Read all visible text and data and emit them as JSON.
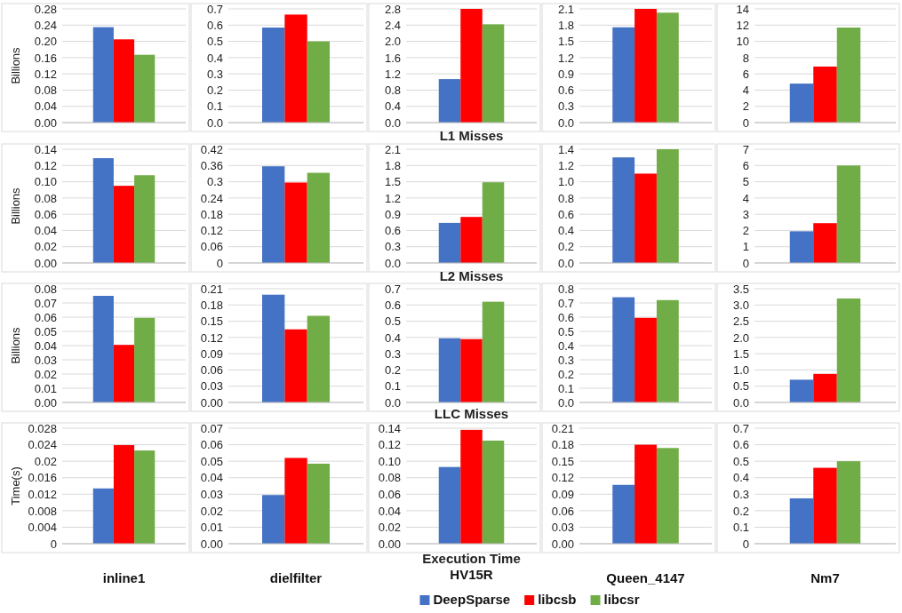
{
  "chart_data": [
    {
      "type": "bar",
      "ylabel": "Billions",
      "categories": [
        null
      ],
      "tick_labels": "y",
      "grid": "y",
      "ylim": [
        0,
        0.28
      ],
      "yticks": [
        {
          "value": 0,
          "label": "0.00"
        },
        0.04,
        0.08,
        0.12,
        0.16,
        {
          "value": 0.2,
          "label": "0.20"
        },
        0.24,
        0.28
      ],
      "series": [
        {
          "color": "#4472c4",
          "values": [
            0.235
          ]
        },
        {
          "color": "#ff0000",
          "values": [
            0.205
          ]
        },
        {
          "color": "#70ad47",
          "values": [
            0.167
          ]
        }
      ]
    },
    {
      "type": "bar",
      "categories": [
        null
      ],
      "tick_labels": "y",
      "grid": "y",
      "ylim": [
        0,
        0.7
      ],
      "yticks": [
        {
          "value": 0,
          "label": "0.0"
        },
        0.1,
        0.2,
        0.3,
        0.4,
        0.5,
        0.6,
        0.7
      ],
      "series": [
        {
          "color": "#4472c4",
          "values": [
            0.585
          ]
        },
        {
          "color": "#ff0000",
          "values": [
            0.665
          ]
        },
        {
          "color": "#70ad47",
          "values": [
            0.5
          ]
        }
      ]
    },
    {
      "type": "bar",
      "title": "L1 Misses",
      "categories": [
        null
      ],
      "tick_labels": "y",
      "grid": "y",
      "ylim": [
        0,
        2.8
      ],
      "yticks": [
        {
          "value": 0,
          "label": "0.0"
        },
        0.4,
        0.8,
        1.2,
        1.6,
        {
          "value": 2,
          "label": "2.0"
        },
        2.4,
        2.8
      ],
      "series": [
        {
          "color": "#4472c4",
          "values": [
            1.07
          ]
        },
        {
          "color": "#ff0000",
          "values": [
            2.8
          ]
        },
        {
          "color": "#70ad47",
          "values": [
            2.42
          ]
        }
      ]
    },
    {
      "type": "bar",
      "categories": [
        null
      ],
      "tick_labels": "y",
      "grid": "y",
      "ylim": [
        0,
        2.1
      ],
      "yticks": [
        {
          "value": 0,
          "label": "0.0"
        },
        0.3,
        0.6,
        0.9,
        1.2,
        1.5,
        1.8,
        2.1
      ],
      "series": [
        {
          "color": "#4472c4",
          "values": [
            1.76
          ]
        },
        {
          "color": "#ff0000",
          "values": [
            2.1
          ]
        },
        {
          "color": "#70ad47",
          "values": [
            2.03
          ]
        }
      ]
    },
    {
      "type": "bar",
      "categories": [
        null
      ],
      "tick_labels": "y",
      "grid": "y",
      "ylim": [
        0,
        14
      ],
      "yticks": [
        0,
        2,
        4,
        6,
        8,
        10,
        12,
        14
      ],
      "series": [
        {
          "color": "#4472c4",
          "values": [
            4.8
          ]
        },
        {
          "color": "#ff0000",
          "values": [
            6.9
          ]
        },
        {
          "color": "#70ad47",
          "values": [
            11.7
          ]
        }
      ]
    },
    {
      "type": "bar",
      "ylabel": "Billions",
      "categories": [
        null
      ],
      "tick_labels": "y",
      "grid": "y",
      "ylim": [
        0,
        0.14
      ],
      "yticks": [
        {
          "value": 0,
          "label": "0.00"
        },
        0.02,
        0.04,
        0.06,
        0.08,
        {
          "value": 0.1,
          "label": "0.10"
        },
        0.12,
        0.14
      ],
      "series": [
        {
          "color": "#4472c4",
          "values": [
            0.129
          ]
        },
        {
          "color": "#ff0000",
          "values": [
            0.095
          ]
        },
        {
          "color": "#70ad47",
          "values": [
            0.108
          ]
        }
      ]
    },
    {
      "type": "bar",
      "categories": [
        null
      ],
      "tick_labels": "y",
      "grid": "y",
      "ylim": [
        0,
        0.42
      ],
      "yticks": [
        0,
        0.06,
        0.12,
        0.18,
        0.24,
        0.3,
        0.36,
        0.42
      ],
      "series": [
        {
          "color": "#4472c4",
          "values": [
            0.357
          ]
        },
        {
          "color": "#ff0000",
          "values": [
            0.297
          ]
        },
        {
          "color": "#70ad47",
          "values": [
            0.333
          ]
        }
      ]
    },
    {
      "type": "bar",
      "title": "L2 Misses",
      "categories": [
        null
      ],
      "tick_labels": "y",
      "grid": "y",
      "ylim": [
        0,
        2.1
      ],
      "yticks": [
        {
          "value": 0,
          "label": "0.0"
        },
        0.3,
        0.6,
        0.9,
        1.2,
        1.5,
        1.8,
        2.1
      ],
      "series": [
        {
          "color": "#4472c4",
          "values": [
            0.74
          ]
        },
        {
          "color": "#ff0000",
          "values": [
            0.85
          ]
        },
        {
          "color": "#70ad47",
          "values": [
            1.49
          ]
        }
      ]
    },
    {
      "type": "bar",
      "categories": [
        null
      ],
      "tick_labels": "y",
      "grid": "y",
      "ylim": [
        0,
        1.4
      ],
      "yticks": [
        {
          "value": 0,
          "label": "0.0"
        },
        0.2,
        0.4,
        0.6,
        0.8,
        {
          "value": 1,
          "label": "1.0"
        },
        1.2,
        1.4
      ],
      "series": [
        {
          "color": "#4472c4",
          "values": [
            1.3
          ]
        },
        {
          "color": "#ff0000",
          "values": [
            1.1
          ]
        },
        {
          "color": "#70ad47",
          "values": [
            1.4
          ]
        }
      ]
    },
    {
      "type": "bar",
      "categories": [
        null
      ],
      "tick_labels": "y",
      "grid": "y",
      "ylim": [
        0,
        7
      ],
      "yticks": [
        0,
        1,
        2,
        3,
        4,
        5,
        6,
        7
      ],
      "series": [
        {
          "color": "#4472c4",
          "values": [
            1.95
          ]
        },
        {
          "color": "#ff0000",
          "values": [
            2.45
          ]
        },
        {
          "color": "#70ad47",
          "values": [
            6.0
          ]
        }
      ]
    },
    {
      "type": "bar",
      "ylabel": "Billions",
      "categories": [
        null
      ],
      "tick_labels": "y",
      "grid": "y",
      "ylim": [
        0,
        0.08
      ],
      "yticks": [
        {
          "value": 0,
          "label": "0.00"
        },
        0.01,
        0.02,
        0.03,
        0.04,
        0.05,
        0.06,
        0.07,
        0.08
      ],
      "series": [
        {
          "color": "#4472c4",
          "values": [
            0.075
          ]
        },
        {
          "color": "#ff0000",
          "values": [
            0.0405
          ]
        },
        {
          "color": "#70ad47",
          "values": [
            0.0595
          ]
        }
      ]
    },
    {
      "type": "bar",
      "categories": [
        null
      ],
      "tick_labels": "y",
      "grid": "y",
      "ylim": [
        0,
        0.21
      ],
      "yticks": [
        {
          "value": 0,
          "label": "0.00"
        },
        0.03,
        0.06,
        0.09,
        0.12,
        0.15,
        0.18,
        0.21
      ],
      "series": [
        {
          "color": "#4472c4",
          "values": [
            0.199
          ]
        },
        {
          "color": "#ff0000",
          "values": [
            0.135
          ]
        },
        {
          "color": "#70ad47",
          "values": [
            0.16
          ]
        }
      ]
    },
    {
      "type": "bar",
      "title": "LLC Misses",
      "categories": [
        null
      ],
      "tick_labels": "y",
      "grid": "y",
      "ylim": [
        0,
        0.7
      ],
      "yticks": [
        {
          "value": 0,
          "label": "0.0"
        },
        0.1,
        0.2,
        0.3,
        0.4,
        0.5,
        0.6,
        0.7
      ],
      "series": [
        {
          "color": "#4472c4",
          "values": [
            0.395
          ]
        },
        {
          "color": "#ff0000",
          "values": [
            0.39
          ]
        },
        {
          "color": "#70ad47",
          "values": [
            0.62
          ]
        }
      ]
    },
    {
      "type": "bar",
      "categories": [
        null
      ],
      "tick_labels": "y",
      "grid": "y",
      "ylim": [
        0,
        0.8
      ],
      "yticks": [
        {
          "value": 0,
          "label": "0.0"
        },
        0.1,
        0.2,
        0.3,
        0.4,
        0.5,
        0.6,
        0.7,
        0.8
      ],
      "series": [
        {
          "color": "#4472c4",
          "values": [
            0.74
          ]
        },
        {
          "color": "#ff0000",
          "values": [
            0.595
          ]
        },
        {
          "color": "#70ad47",
          "values": [
            0.72
          ]
        }
      ]
    },
    {
      "type": "bar",
      "categories": [
        null
      ],
      "tick_labels": "y",
      "grid": "y",
      "ylim": [
        0,
        3.5
      ],
      "yticks": [
        {
          "value": 0,
          "label": "0.0"
        },
        0.5,
        {
          "value": 1,
          "label": "1.0"
        },
        1.5,
        {
          "value": 2,
          "label": "2.0"
        },
        2.5,
        {
          "value": 3,
          "label": "3.0"
        },
        3.5
      ],
      "series": [
        {
          "color": "#4472c4",
          "values": [
            0.7
          ]
        },
        {
          "color": "#ff0000",
          "values": [
            0.88
          ]
        },
        {
          "color": "#70ad47",
          "values": [
            3.2
          ]
        }
      ]
    },
    {
      "type": "bar",
      "ylabel": "Time(s)",
      "categories": [
        "inline1"
      ],
      "grid": "y",
      "ylim": [
        0,
        0.028
      ],
      "yticks": [
        0,
        0.004,
        0.008,
        0.012,
        0.016,
        0.02,
        0.024,
        0.028
      ],
      "series": [
        {
          "color": "#4472c4",
          "values": [
            0.0134
          ]
        },
        {
          "color": "#ff0000",
          "values": [
            0.0239
          ]
        },
        {
          "color": "#70ad47",
          "values": [
            0.0226
          ]
        }
      ]
    },
    {
      "type": "bar",
      "categories": [
        "dielfilter"
      ],
      "grid": "y",
      "ylim": [
        0,
        0.07
      ],
      "yticks": [
        {
          "value": 0,
          "label": "0.00"
        },
        0.01,
        0.02,
        0.03,
        0.04,
        0.05,
        0.06,
        0.07
      ],
      "series": [
        {
          "color": "#4472c4",
          "values": [
            0.0295
          ]
        },
        {
          "color": "#ff0000",
          "values": [
            0.052
          ]
        },
        {
          "color": "#70ad47",
          "values": [
            0.0485
          ]
        }
      ]
    },
    {
      "type": "bar",
      "title": "Execution Time",
      "categories": [
        "HV15R"
      ],
      "grid": "y",
      "legend": "bottom",
      "ylim": [
        0,
        0.14
      ],
      "yticks": [
        {
          "value": 0,
          "label": "0.00"
        },
        0.02,
        0.04,
        0.06,
        0.08,
        {
          "value": 0.1,
          "label": "0.10"
        },
        0.12,
        0.14
      ],
      "series": [
        {
          "name": "DeepSparse",
          "color": "#4472c4",
          "values": [
            0.093
          ]
        },
        {
          "name": "libcsb",
          "color": "#ff0000",
          "values": [
            0.138
          ]
        },
        {
          "name": "libcsr",
          "color": "#70ad47",
          "values": [
            0.125
          ]
        }
      ]
    },
    {
      "type": "bar",
      "categories": [
        "Queen_4147"
      ],
      "grid": "y",
      "ylim": [
        0,
        0.21
      ],
      "yticks": [
        {
          "value": 0,
          "label": "0.00"
        },
        0.03,
        0.06,
        0.09,
        0.12,
        0.15,
        0.18,
        0.21
      ],
      "series": [
        {
          "color": "#4472c4",
          "values": [
            0.107
          ]
        },
        {
          "color": "#ff0000",
          "values": [
            0.18
          ]
        },
        {
          "color": "#70ad47",
          "values": [
            0.174
          ]
        }
      ]
    },
    {
      "type": "bar",
      "categories": [
        "Nm7"
      ],
      "grid": "y",
      "ylim": [
        0,
        0.7
      ],
      "yticks": [
        0,
        0.1,
        0.2,
        0.3,
        0.4,
        0.5,
        0.6,
        0.7
      ],
      "series": [
        {
          "color": "#4472c4",
          "values": [
            0.275
          ]
        },
        {
          "color": "#ff0000",
          "values": [
            0.46
          ]
        },
        {
          "color": "#70ad47",
          "values": [
            0.5
          ]
        }
      ]
    }
  ]
}
